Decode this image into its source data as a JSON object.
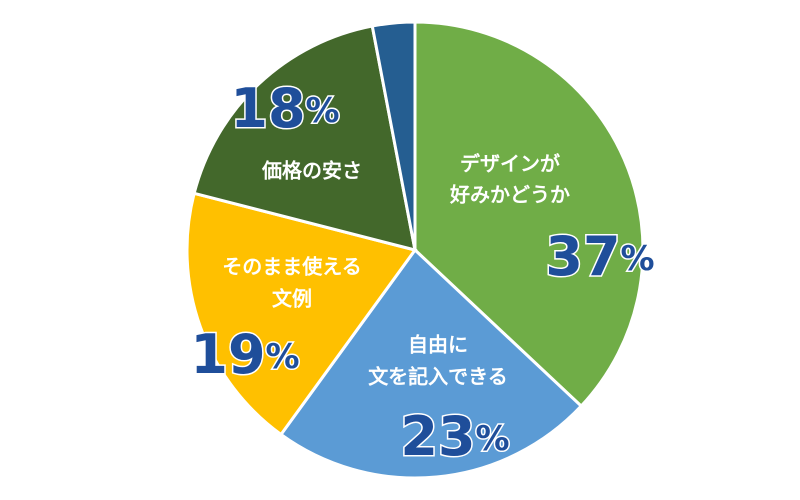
{
  "chart_data": {
    "type": "pie",
    "categories": [
      [
        "デザインが",
        "好みかどうか"
      ],
      [
        "自由に",
        "文を記入できる"
      ],
      [
        "そのまま使える",
        "文例"
      ],
      [
        "価格の安さ"
      ],
      null
    ],
    "values": [
      37,
      23,
      19,
      18,
      3
    ],
    "unit": "%",
    "colors": [
      "#70ad47",
      "#5b9bd5",
      "#ffc000",
      "#43682b",
      "#255e91"
    ]
  }
}
